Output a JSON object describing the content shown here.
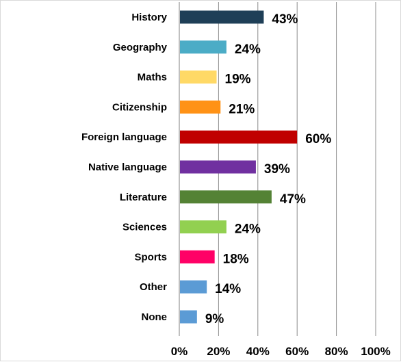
{
  "chart_data": {
    "type": "bar",
    "orientation": "horizontal",
    "categories": [
      "History",
      "Geography",
      "Maths",
      "Citizenship",
      "Foreign language",
      "Native language",
      "Literature",
      "Sciences",
      "Sports",
      "Other",
      "None"
    ],
    "values": [
      43,
      24,
      19,
      21,
      60,
      39,
      47,
      24,
      18,
      14,
      9
    ],
    "value_labels": [
      "43%",
      "24%",
      "19%",
      "21%",
      "60%",
      "39%",
      "47%",
      "24%",
      "18%",
      "14%",
      "9%"
    ],
    "colors": [
      "#1f3f57",
      "#4bacc6",
      "#ffd966",
      "#ff9216",
      "#c00000",
      "#7030a0",
      "#548235",
      "#92d050",
      "#ff0066",
      "#5b9bd5",
      "#5b9bd5"
    ],
    "xlim": [
      0,
      100
    ],
    "x_ticks": [
      "0%",
      "20%",
      "40%",
      "60%",
      "80%",
      "100%"
    ],
    "grid": "vertical",
    "legend": "none",
    "title": "",
    "xlabel": "",
    "ylabel": ""
  }
}
